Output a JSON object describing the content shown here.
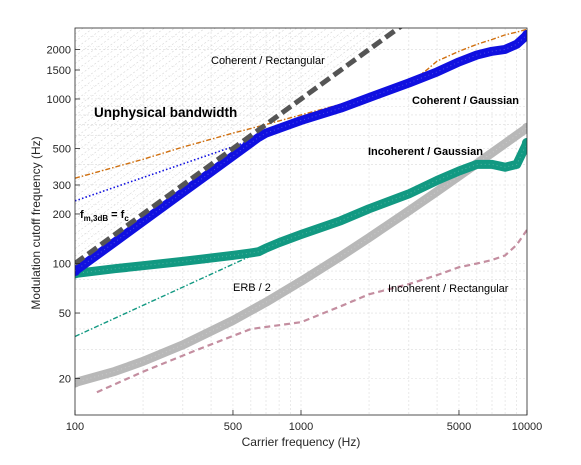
{
  "chart_data": {
    "type": "line",
    "title": "",
    "xlabel": "Carrier frequency (Hz)",
    "ylabel": "Modulation cutoff frequency (Hz)",
    "xscale": "log",
    "yscale": "log",
    "xlim": [
      100,
      10000
    ],
    "ylim": [
      12,
      2700
    ],
    "grid": true,
    "x_ticks": [
      {
        "value": 100,
        "label": "100"
      },
      {
        "value": 500,
        "label": "500"
      },
      {
        "value": 1000,
        "label": "1000"
      },
      {
        "value": 5000,
        "label": "5000"
      },
      {
        "value": 10000,
        "label": "10000"
      }
    ],
    "y_ticks": [
      {
        "value": 20,
        "label": "20"
      },
      {
        "value": 50,
        "label": "50"
      },
      {
        "value": 100,
        "label": "100"
      },
      {
        "value": 200,
        "label": "200"
      },
      {
        "value": 300,
        "label": "300"
      },
      {
        "value": 500,
        "label": "500"
      },
      {
        "value": 1000,
        "label": "1000"
      },
      {
        "value": 1500,
        "label": "1500"
      },
      {
        "value": 2000,
        "label": "2000"
      }
    ],
    "series": [
      {
        "name": "Coherent / Gaussian",
        "color": "#1010e0",
        "style": "thick-band",
        "x": [
          100,
          150,
          200,
          300,
          400,
          500,
          600,
          650,
          700,
          1000,
          1500,
          2000,
          3000,
          4000,
          5000,
          6000,
          7000,
          8000,
          9000,
          10000
        ],
        "y": [
          90,
          135,
          180,
          270,
          360,
          450,
          540,
          585,
          620,
          740,
          880,
          1020,
          1250,
          1460,
          1680,
          1850,
          1950,
          2000,
          2150,
          2450
        ]
      },
      {
        "name": "Incoherent / Gaussian",
        "color": "#129982",
        "style": "thick-band",
        "x": [
          100,
          150,
          200,
          300,
          400,
          500,
          600,
          650,
          700,
          800,
          1000,
          1500,
          2000,
          3000,
          4000,
          5000,
          6000,
          7000,
          8000,
          9000,
          10000
        ],
        "y": [
          87,
          93,
          97,
          103,
          108,
          112,
          116,
          118,
          124,
          134,
          150,
          182,
          215,
          265,
          320,
          365,
          400,
          400,
          385,
          400,
          540
        ]
      },
      {
        "name": "ERB / 2",
        "color": "#b8b8b8",
        "style": "thick-band",
        "x": [
          100,
          150,
          200,
          300,
          500,
          700,
          1000,
          1500,
          2000,
          3000,
          4000,
          5000,
          6000,
          7000,
          8000,
          9000,
          10000
        ],
        "y": [
          18.9,
          22.1,
          25.4,
          32.0,
          45.1,
          58.2,
          77.9,
          110.6,
          143.4,
          208.9,
          274.4,
          339.9,
          405.4,
          470.9,
          536.4,
          601.9,
          667.5
        ]
      },
      {
        "name": "Incoherent / Rectangular",
        "color": "#c48ea0",
        "style": "dashed",
        "x": [
          125,
          200,
          350,
          600,
          1000,
          1500,
          2000,
          3000,
          4000,
          5000,
          6000,
          7000,
          8000,
          9000,
          10000
        ],
        "y": [
          16.5,
          22,
          30,
          40,
          44,
          55,
          65,
          75,
          85,
          95,
          100,
          105,
          112,
          130,
          160
        ]
      },
      {
        "name": "Coherent / Rectangular",
        "color": "#d07010",
        "style": "dashdot",
        "x": [
          100,
          200,
          300,
          500,
          700,
          1000,
          1500,
          2000,
          2500,
          3000,
          3600,
          4000,
          5000,
          6000,
          7000,
          8000,
          9000,
          10000
        ],
        "y": [
          330,
          430,
          510,
          620,
          700,
          800,
          930,
          1050,
          1150,
          1250,
          1500,
          1700,
          1950,
          2150,
          2300,
          2450,
          2550,
          2650
        ]
      },
      {
        "name": "f_m,3dB = f_c",
        "color": "#555555",
        "style": "thick-dashed",
        "x": [
          100,
          3200
        ],
        "y": [
          100,
          3200
        ]
      },
      {
        "name": "blue-extension",
        "color": "#1010e0",
        "style": "dotted",
        "x": [
          100,
          660
        ],
        "y": [
          240,
          585
        ]
      },
      {
        "name": "teal-extension",
        "color": "#129982",
        "style": "dashdot",
        "x": [
          100,
          660
        ],
        "y": [
          36,
          118
        ]
      }
    ],
    "annotations": {
      "unphysical": "Unphysical bandwidth",
      "coh_gauss": "Coherent / Gaussian",
      "coh_rect": "Coherent / Rectangular",
      "incoh_gauss": "Incoherent / Gaussian",
      "incoh_rect": "Incoherent / Rectangular",
      "erb": "ERB / 2",
      "f_main": "f",
      "f_sub_m": "m,3dB",
      "f_eq": " = f",
      "f_sub_c": "c"
    }
  }
}
